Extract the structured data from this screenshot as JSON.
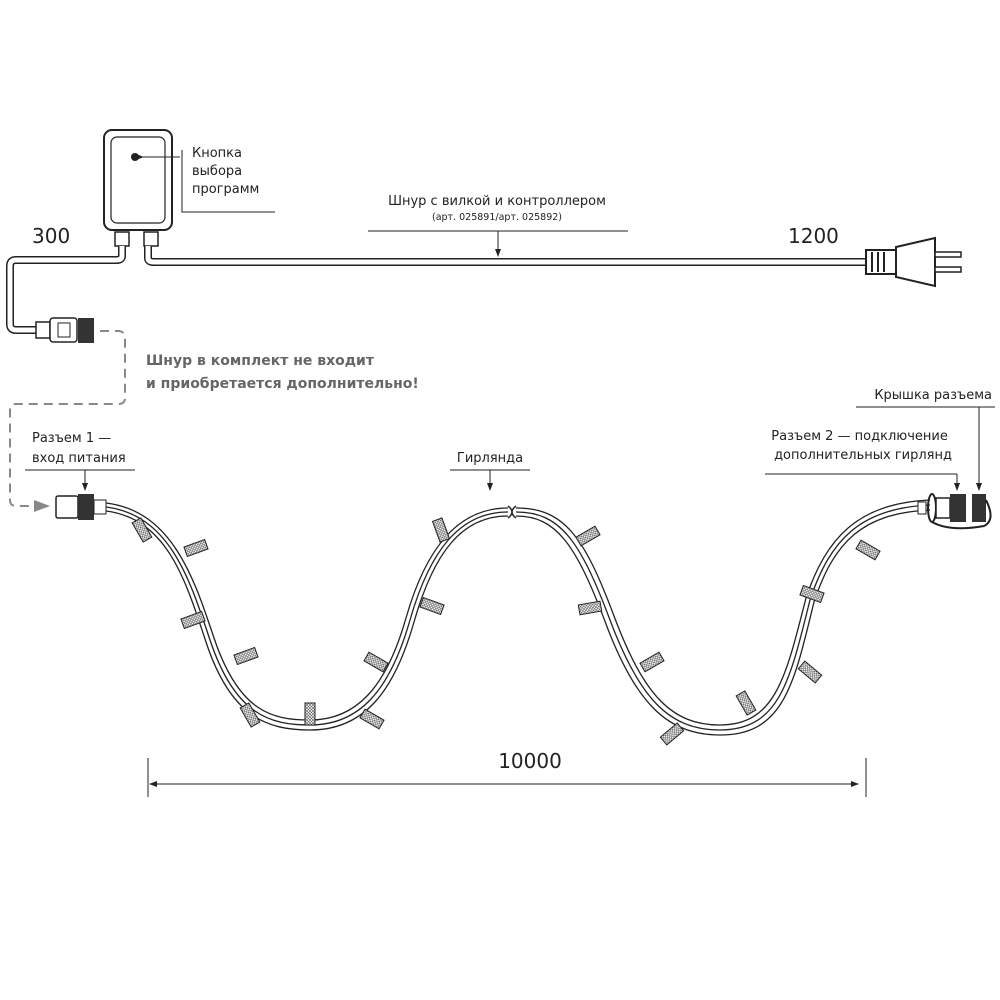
{
  "controller": {
    "button_label": [
      "Кнопка",
      "выбора",
      "программ"
    ]
  },
  "cord": {
    "title": "Шнур с вилкой и контроллером",
    "articles": "(арт. 025891/арт. 025892)",
    "length_left": "300",
    "length_right": "1200"
  },
  "note": [
    "Шнур в комплект не входит",
    "и приобретается дополнительно!"
  ],
  "connector1": [
    "Разъем 1 —",
    "вход питания"
  ],
  "garland": {
    "label": "Гирлянда",
    "length": "10000"
  },
  "connector2": [
    "Разъем 2 — подключение",
    "дополнительных гирлянд"
  ],
  "cap": {
    "label": "Крышка разъема"
  },
  "colors": {
    "line": "#222222",
    "note": "#666666",
    "dashed": "#888888"
  }
}
